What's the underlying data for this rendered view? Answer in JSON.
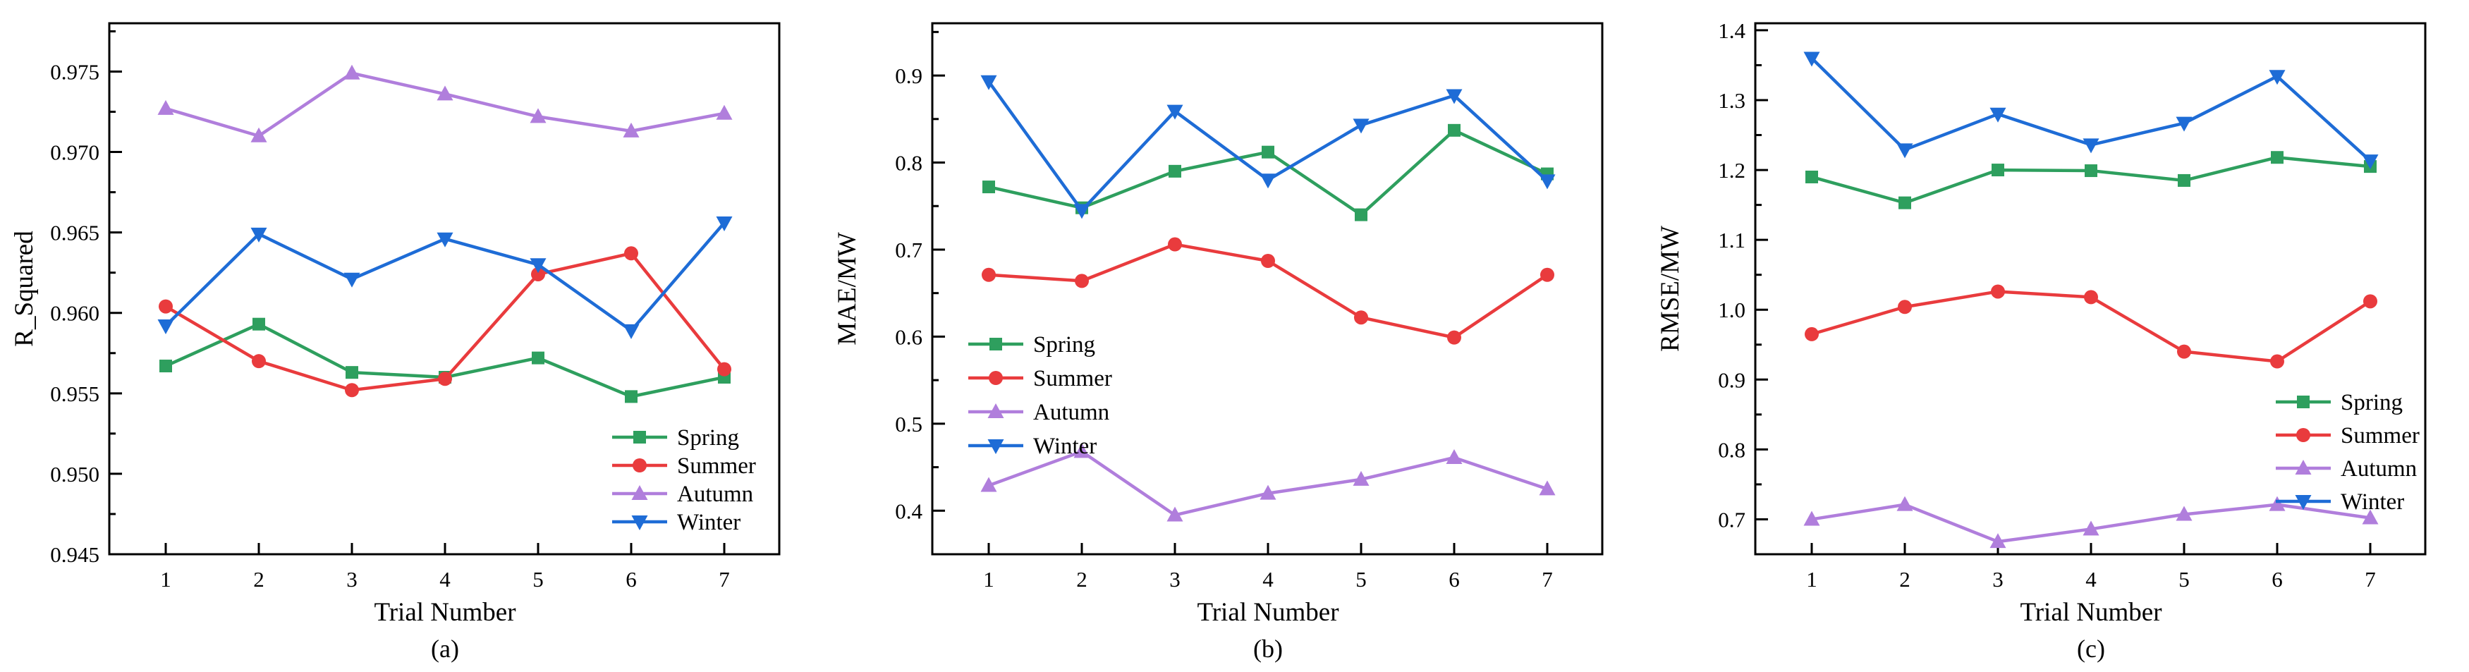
{
  "figure": {
    "xlabel": "Trial Number",
    "x_values": [
      1,
      2,
      3,
      4,
      5,
      6,
      7
    ],
    "legend_entries": [
      "Spring",
      "Summer",
      "Autumn",
      "Winter"
    ]
  },
  "colors": {
    "spring": "#2E9F5E",
    "summer": "#E93B3D",
    "autumn": "#B07EDC",
    "winter": "#1E6CD6",
    "axis": "#000000",
    "background": "#ffffff"
  },
  "chart_data": [
    {
      "type": "line",
      "caption": "(a)",
      "xlabel": "Trial Number",
      "ylabel": "R_Squared",
      "x": [
        1,
        2,
        3,
        4,
        5,
        6,
        7
      ],
      "ylim": [
        0.945,
        0.978
      ],
      "yticks": [
        {
          "v": 0.945,
          "label": "0.945"
        },
        {
          "v": 0.95,
          "label": "0.950"
        },
        {
          "v": 0.955,
          "label": "0.955"
        },
        {
          "v": 0.96,
          "label": "0.960"
        },
        {
          "v": 0.965,
          "label": "0.965"
        },
        {
          "v": 0.97,
          "label": "0.970"
        },
        {
          "v": 0.975,
          "label": "0.975"
        }
      ],
      "minor_step": 0.0025,
      "grid": false,
      "legend_pos": {
        "x": 868,
        "y": 620,
        "dy": 40
      },
      "series": [
        {
          "name": "Spring",
          "color_key": "spring",
          "marker": "square",
          "values": [
            0.9567,
            0.9593,
            0.9563,
            0.956,
            0.9572,
            0.9548,
            0.956
          ]
        },
        {
          "name": "Summer",
          "color_key": "summer",
          "marker": "circle",
          "values": [
            0.9604,
            0.957,
            0.9552,
            0.9559,
            0.9624,
            0.9637,
            0.9565
          ]
        },
        {
          "name": "Autumn",
          "color_key": "autumn",
          "marker": "triangle-up",
          "values": [
            0.9727,
            0.971,
            0.9749,
            0.9736,
            0.9722,
            0.9713,
            0.9724
          ]
        },
        {
          "name": "Winter",
          "color_key": "winter",
          "marker": "triangle-down",
          "values": [
            0.9592,
            0.9649,
            0.9621,
            0.9646,
            0.963,
            0.9589,
            0.9656
          ]
        }
      ]
    },
    {
      "type": "line",
      "caption": "(b)",
      "xlabel": "Trial Number",
      "ylabel": "MAE/MW",
      "x": [
        1,
        2,
        3,
        4,
        5,
        6,
        7
      ],
      "ylim": [
        0.35,
        0.96
      ],
      "yticks": [
        {
          "v": 0.4,
          "label": "0.4"
        },
        {
          "v": 0.5,
          "label": "0.5"
        },
        {
          "v": 0.6,
          "label": "0.6"
        },
        {
          "v": 0.7,
          "label": "0.7"
        },
        {
          "v": 0.8,
          "label": "0.8"
        },
        {
          "v": 0.9,
          "label": "0.9"
        }
      ],
      "minor_step": 0.05,
      "grid": false,
      "legend_pos": {
        "x": 206,
        "y": 488,
        "dy": 48
      },
      "series": [
        {
          "name": "Spring",
          "color_key": "spring",
          "marker": "square",
          "values": [
            0.772,
            0.748,
            0.79,
            0.812,
            0.74,
            0.837,
            0.787
          ]
        },
        {
          "name": "Summer",
          "color_key": "summer",
          "marker": "circle",
          "values": [
            0.671,
            0.664,
            0.706,
            0.687,
            0.622,
            0.599,
            0.671
          ]
        },
        {
          "name": "Autumn",
          "color_key": "autumn",
          "marker": "triangle-up",
          "values": [
            0.429,
            0.468,
            0.395,
            0.42,
            0.436,
            0.461,
            0.425
          ]
        },
        {
          "name": "Winter",
          "color_key": "winter",
          "marker": "triangle-down",
          "values": [
            0.893,
            0.745,
            0.859,
            0.78,
            0.843,
            0.877,
            0.779
          ]
        }
      ]
    },
    {
      "type": "line",
      "caption": "(c)",
      "xlabel": "Trial Number",
      "ylabel": "RMSE/MW",
      "x": [
        1,
        2,
        3,
        4,
        5,
        6,
        7
      ],
      "ylim": [
        0.65,
        1.41
      ],
      "yticks": [
        {
          "v": 0.7,
          "label": "0.7"
        },
        {
          "v": 0.8,
          "label": "0.8"
        },
        {
          "v": 0.9,
          "label": "0.9"
        },
        {
          "v": 1.0,
          "label": "1.0"
        },
        {
          "v": 1.1,
          "label": "1.1"
        },
        {
          "v": 1.2,
          "label": "1.2"
        },
        {
          "v": 1.3,
          "label": "1.3"
        },
        {
          "v": 1.4,
          "label": "1.4"
        }
      ],
      "minor_step": 0.05,
      "grid": false,
      "legend_pos": {
        "x": 893,
        "y": 570,
        "dy": 47
      },
      "series": [
        {
          "name": "Spring",
          "color_key": "spring",
          "marker": "square",
          "values": [
            1.19,
            1.153,
            1.2,
            1.199,
            1.185,
            1.218,
            1.205
          ]
        },
        {
          "name": "Summer",
          "color_key": "summer",
          "marker": "circle",
          "values": [
            0.965,
            1.004,
            1.026,
            1.018,
            0.94,
            0.926,
            1.012
          ]
        },
        {
          "name": "Autumn",
          "color_key": "autumn",
          "marker": "triangle-up",
          "values": [
            0.7,
            0.721,
            0.668,
            0.686,
            0.707,
            0.721,
            0.702
          ]
        },
        {
          "name": "Winter",
          "color_key": "winter",
          "marker": "triangle-down",
          "values": [
            1.36,
            1.229,
            1.28,
            1.236,
            1.267,
            1.334,
            1.213
          ]
        }
      ]
    }
  ]
}
